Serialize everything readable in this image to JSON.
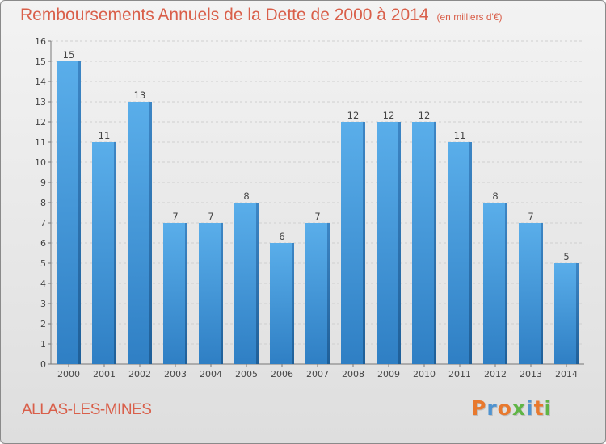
{
  "header": {
    "title": "Remboursements Annuels de la Dette de 2000 à 2014",
    "unit": "(en milliers d'€)"
  },
  "commune": "ALLAS-LES-MINES",
  "logo": {
    "text": "Proxiti",
    "letter_colors": [
      "#e8792e",
      "#4f93d0",
      "#e8792e",
      "#5fb545",
      "#4f93d0",
      "#e8792e",
      "#5fb545"
    ]
  },
  "chart_data": {
    "type": "bar",
    "title": "Remboursements Annuels de la Dette de 2000 à 2014",
    "categories": [
      "2000",
      "2001",
      "2002",
      "2003",
      "2004",
      "2005",
      "2006",
      "2007",
      "2008",
      "2009",
      "2010",
      "2011",
      "2012",
      "2013",
      "2014"
    ],
    "values": [
      15,
      11,
      13,
      7,
      7,
      8,
      6,
      7,
      12,
      12,
      12,
      11,
      8,
      7,
      5
    ],
    "ylim": [
      0,
      16
    ],
    "yticks": [
      0,
      1,
      2,
      3,
      4,
      5,
      6,
      7,
      8,
      9,
      10,
      11,
      12,
      13,
      14,
      15,
      16
    ],
    "xlabel": "",
    "ylabel": "",
    "grid": true,
    "bar_color": "#4a9ee0"
  }
}
